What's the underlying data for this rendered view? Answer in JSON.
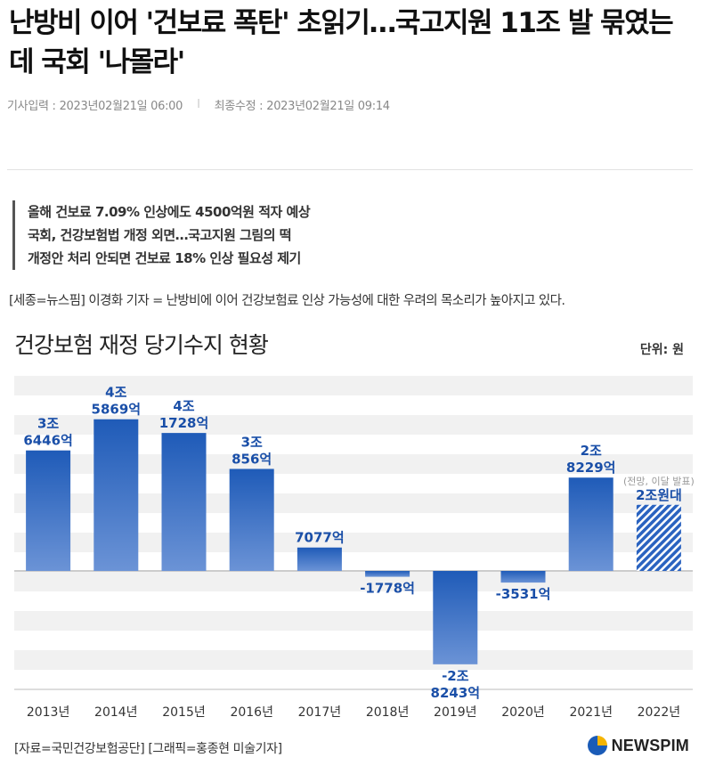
{
  "article": {
    "headline": "난방비 이어 '건보료 폭탄' 초읽기…국고지원 11조 발 묶였는데 국회 '나몰라'",
    "meta": {
      "input_label": "기사입력 :",
      "input_time": "2023년02월21일 06:00",
      "separator": "I",
      "update_label": "최종수정 :",
      "update_time": "2023년02월21일 09:14"
    },
    "summary": [
      "올해 건보료 7.09% 인상에도 4500억원 적자 예상",
      "국회, 건강보험법 개정 외면…국고지원 그림의 떡",
      "개정안 처리 안되면 건보료 18% 인상 필요성 제기"
    ],
    "lead": "[세종=뉴스핌] 이경화 기자 = 난방비에 이어 건강보험료 인상 가능성에 대한 우려의 목소리가 높아지고 있다."
  },
  "infographic": {
    "title": "건강보험 재정 당기수지 현황",
    "unit": "단위: 원",
    "source": "[자료=국민건강보험공단]",
    "credit": "[그래픽=홍종현 미술기자]",
    "logo_text": "NEWSPIM",
    "colors": {
      "bar_top": "#1f5bb8",
      "bar_bottom": "#6b93d6",
      "projected": "#2a63c0",
      "label": "#1a4fa8",
      "band": "#f1f1f1",
      "zero_line": "#999999"
    }
  },
  "chart_data": {
    "type": "bar",
    "title": "건강보험 재정 당기수지 현황",
    "unit_label": "단위: 원",
    "categories": [
      "2013년",
      "2014년",
      "2015년",
      "2016년",
      "2017년",
      "2018년",
      "2019년",
      "2020년",
      "2021년",
      "2022년"
    ],
    "values_eok": [
      36446,
      45869,
      41728,
      30856,
      7077,
      -1778,
      -28243,
      -3531,
      28229,
      20000
    ],
    "data_labels": [
      [
        "3조",
        "6446억"
      ],
      [
        "4조",
        "5869억"
      ],
      [
        "4조",
        "1728억"
      ],
      [
        "3조",
        "856억"
      ],
      [
        "7077억"
      ],
      [
        "-1778억"
      ],
      [
        "-2조",
        "8243억"
      ],
      [
        "-3531억"
      ],
      [
        "2조",
        "8229억"
      ],
      [
        "2조원대"
      ]
    ],
    "projected_index": 9,
    "projected_note": "(전망, 이달 발표)",
    "ylim_eok": [
      -38000,
      59000
    ],
    "grid": "horizontal bands"
  }
}
